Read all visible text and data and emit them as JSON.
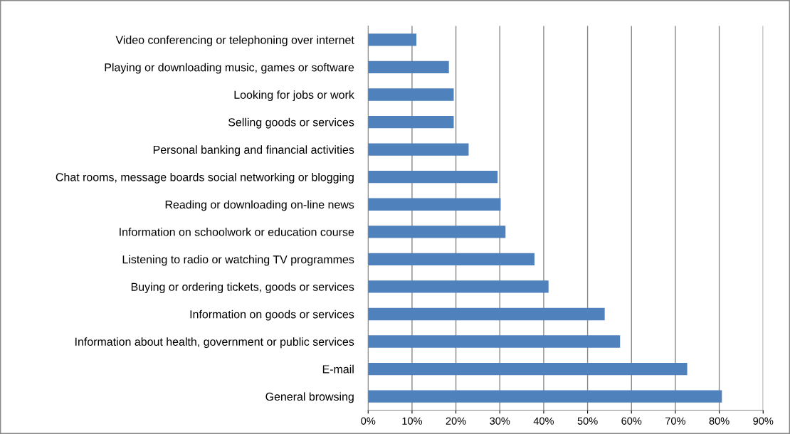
{
  "chart_data": {
    "type": "bar",
    "orientation": "horizontal",
    "color": "#4f81bd",
    "categories": [
      "Video conferencing or telephoning over internet",
      "Playing or downloading music, games or software",
      "Looking for jobs or work",
      "Selling goods or services",
      "Personal banking and financial activities",
      "Chat rooms, message boards social networking or blogging",
      "Reading or downloading on-line news",
      "Information on schoolwork or education course",
      "Listening to radio or watching TV programmes",
      "Buying or ordering tickets, goods or services",
      "Information on goods or services",
      "Information about health, government or public services",
      "E-mail",
      "General browsing"
    ],
    "values": [
      11,
      18.4,
      19.5,
      19.5,
      22.9,
      29.5,
      30.2,
      31.3,
      37.9,
      41.1,
      53.9,
      57.4,
      72.7,
      80.6
    ],
    "xlim": [
      0,
      90
    ],
    "xticks": [
      {
        "value": 0,
        "label": "0%"
      },
      {
        "value": 10,
        "label": "10%"
      },
      {
        "value": 20,
        "label": "20%"
      },
      {
        "value": 30,
        "label": "30%"
      },
      {
        "value": 40,
        "label": "40%"
      },
      {
        "value": 50,
        "label": "50%"
      },
      {
        "value": 60,
        "label": "60%"
      },
      {
        "value": 70,
        "label": "70%"
      },
      {
        "value": 80,
        "label": "80%"
      },
      {
        "value": 90,
        "label": "90%"
      }
    ],
    "grid": "x"
  }
}
